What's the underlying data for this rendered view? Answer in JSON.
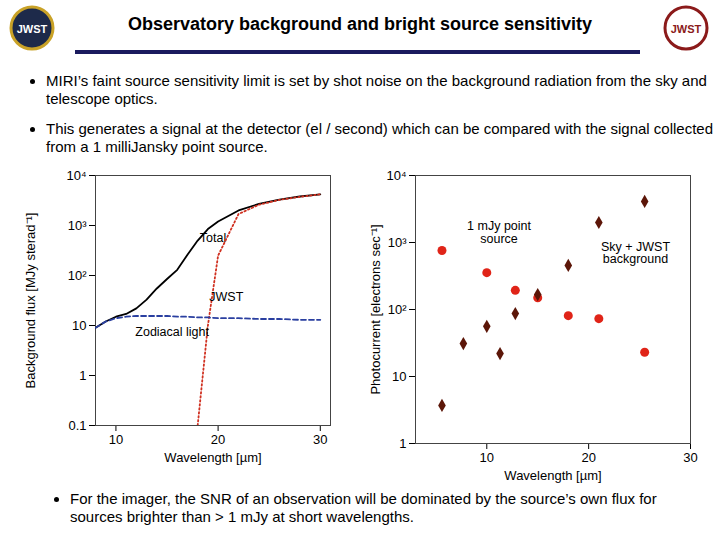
{
  "slide": {
    "title": "Observatory background and bright source sensitivity",
    "logo_text": "JWST",
    "bullets": [
      "MIRI’s faint source sensitivity limit is set by shot noise on the background radiation from the sky and telescope optics.",
      "This generates a signal at the detector (el / second) which can be compared with the signal collected from a 1 milliJansky point source."
    ],
    "footer_bullet": "For the imager, the SNR of an observation will be dominated by the source’s own flux for sources brighter than > 1 mJy at short wavelengths."
  },
  "chart_data": [
    {
      "type": "line",
      "x_label": "Wavelength [µm]",
      "y_label": "Background flux [MJy sterad⁻¹]",
      "x": [
        8,
        9,
        10,
        11,
        12,
        13,
        14,
        15,
        16,
        17,
        18,
        19,
        20,
        22,
        24,
        26,
        28,
        30
      ],
      "series": [
        {
          "name": "Total",
          "color": "#000000",
          "line_style": "solid",
          "label_position": {
            "x": 19.5,
            "y": 560
          },
          "values": [
            9,
            12,
            15,
            17,
            22,
            33,
            55,
            85,
            130,
            260,
            500,
            850,
            1200,
            2000,
            2700,
            3300,
            3800,
            4200
          ]
        },
        {
          "name": "JWST",
          "color": "#d03020",
          "line_style": "dotted",
          "label_position": {
            "x": 20.8,
            "y": 37
          },
          "values": [
            null,
            null,
            null,
            null,
            null,
            null,
            null,
            null,
            null,
            null,
            0.1,
            10,
            250,
            1700,
            2600,
            3250,
            3750,
            4200
          ]
        },
        {
          "name": "Zodiacal light",
          "color": "#2a3fa0",
          "line_style": "dashed",
          "label_position": {
            "x": 15.5,
            "y": 7.5
          },
          "values": [
            9,
            12,
            14,
            15,
            15.5,
            15.5,
            15.5,
            15.5,
            15,
            15,
            14.5,
            14.5,
            14,
            14,
            13.5,
            13.5,
            13,
            13
          ]
        }
      ],
      "xlim": [
        8,
        31
      ],
      "ylim": [
        0.1,
        10000
      ],
      "log": "y",
      "xticks": [
        10,
        20,
        30
      ],
      "yticks": [
        0.1,
        1,
        10,
        {
          "value": 100,
          "label": "10²"
        },
        {
          "value": 1000,
          "label": "10³"
        },
        {
          "value": 10000,
          "label": "10⁴"
        }
      ]
    },
    {
      "type": "scatter",
      "x_label": "Wavelength [µm]",
      "y_label": "Photocurrent [electrons sec⁻¹]",
      "x": [
        5.6,
        7.7,
        10,
        11.3,
        12.8,
        15,
        18,
        21,
        25.5
      ],
      "series": [
        {
          "name": "1 mJy point source",
          "color": "#e02418",
          "marker": "circle",
          "label_position": {
            "x": 11.2,
            "y": 1400
          },
          "values": [
            760,
            null,
            355,
            null,
            193,
            150,
            81,
            73,
            23
          ]
        },
        {
          "name": "Sky + JWST background",
          "color": "#5c1608",
          "marker": "diamond",
          "label_position": {
            "x": 24.6,
            "y": 700
          },
          "values": [
            3.7,
            31,
            56,
            22,
            87,
            167,
            455,
            1990,
            4100
          ]
        }
      ],
      "xlim": [
        3,
        30
      ],
      "ylim": [
        1,
        10000
      ],
      "log": "y",
      "xticks": [
        10,
        20,
        30
      ],
      "yticks": [
        1,
        10,
        {
          "value": 100,
          "label": "10²"
        },
        {
          "value": 1000,
          "label": "10³"
        },
        {
          "value": 10000,
          "label": "10⁴"
        }
      ]
    }
  ]
}
